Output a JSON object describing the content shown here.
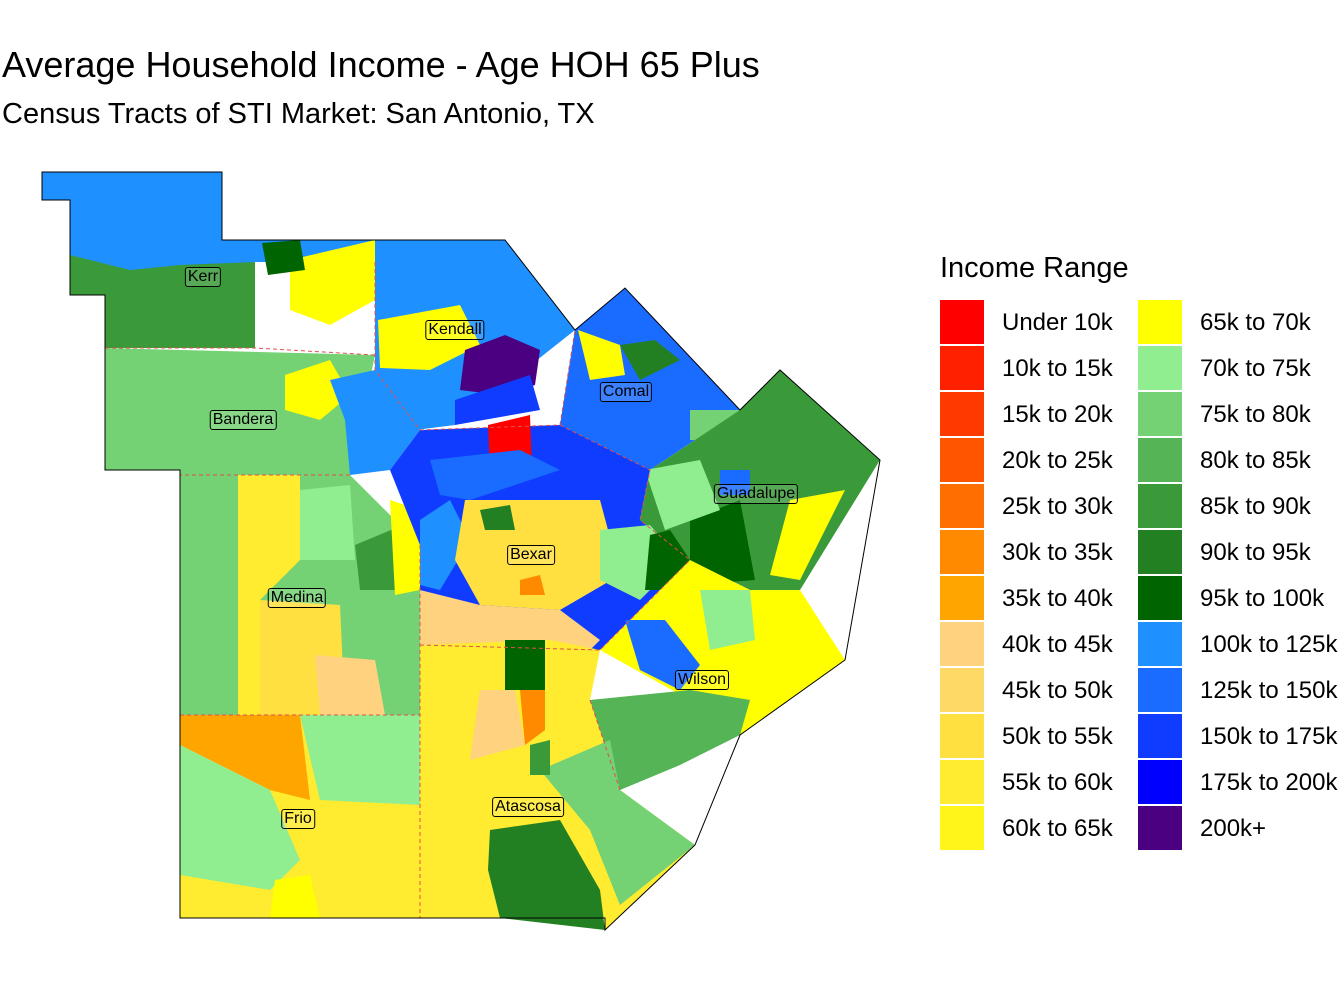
{
  "title": "Average Household Income - Age HOH 65 Plus",
  "subtitle": "Census Tracts of STI Market: San Antonio, TX",
  "counties": [
    {
      "name": "Kerr",
      "key": "kerr"
    },
    {
      "name": "Kendall",
      "key": "kendall"
    },
    {
      "name": "Comal",
      "key": "comal"
    },
    {
      "name": "Bandera",
      "key": "bandera"
    },
    {
      "name": "Guadalupe",
      "key": "guadalupe"
    },
    {
      "name": "Bexar",
      "key": "bexar"
    },
    {
      "name": "Medina",
      "key": "medina"
    },
    {
      "name": "Wilson",
      "key": "wilson"
    },
    {
      "name": "Frio",
      "key": "frio"
    },
    {
      "name": "Atascosa",
      "key": "atascosa"
    }
  ],
  "legend": {
    "title": "Income Range",
    "items": [
      {
        "label": "Under 10k",
        "color": "#FF0000"
      },
      {
        "label": "10k to 15k",
        "color": "#FF2000"
      },
      {
        "label": "15k to 20k",
        "color": "#FF3A00"
      },
      {
        "label": "20k to 25k",
        "color": "#FF5400"
      },
      {
        "label": "25k to 30k",
        "color": "#FF6E00"
      },
      {
        "label": "30k to 35k",
        "color": "#FF8A00"
      },
      {
        "label": "35k to 40k",
        "color": "#FFA500"
      },
      {
        "label": "40k to 45k",
        "color": "#FFD27F"
      },
      {
        "label": "45k to 50k",
        "color": "#FFD966"
      },
      {
        "label": "50k to 55k",
        "color": "#FFE040"
      },
      {
        "label": "55k to 60k",
        "color": "#FFEB30"
      },
      {
        "label": "60k to 65k",
        "color": "#FFF51A"
      },
      {
        "label": "65k to 70k",
        "color": "#FFFF00"
      },
      {
        "label": "70k to 75k",
        "color": "#90EE90"
      },
      {
        "label": "75k to 80k",
        "color": "#74D274"
      },
      {
        "label": "80k to 85k",
        "color": "#55B455"
      },
      {
        "label": "85k to 90k",
        "color": "#3A9A3A"
      },
      {
        "label": "90k to 95k",
        "color": "#228022"
      },
      {
        "label": "95k to 100k",
        "color": "#006400"
      },
      {
        "label": "100k to 125k",
        "color": "#1E90FF"
      },
      {
        "label": "125k to 150k",
        "color": "#1A6BFF"
      },
      {
        "label": "150k to 175k",
        "color": "#0F3CFF"
      },
      {
        "label": "175k to 200k",
        "color": "#0000FF"
      },
      {
        "label": "200k+",
        "color": "#4B0082"
      }
    ]
  }
}
